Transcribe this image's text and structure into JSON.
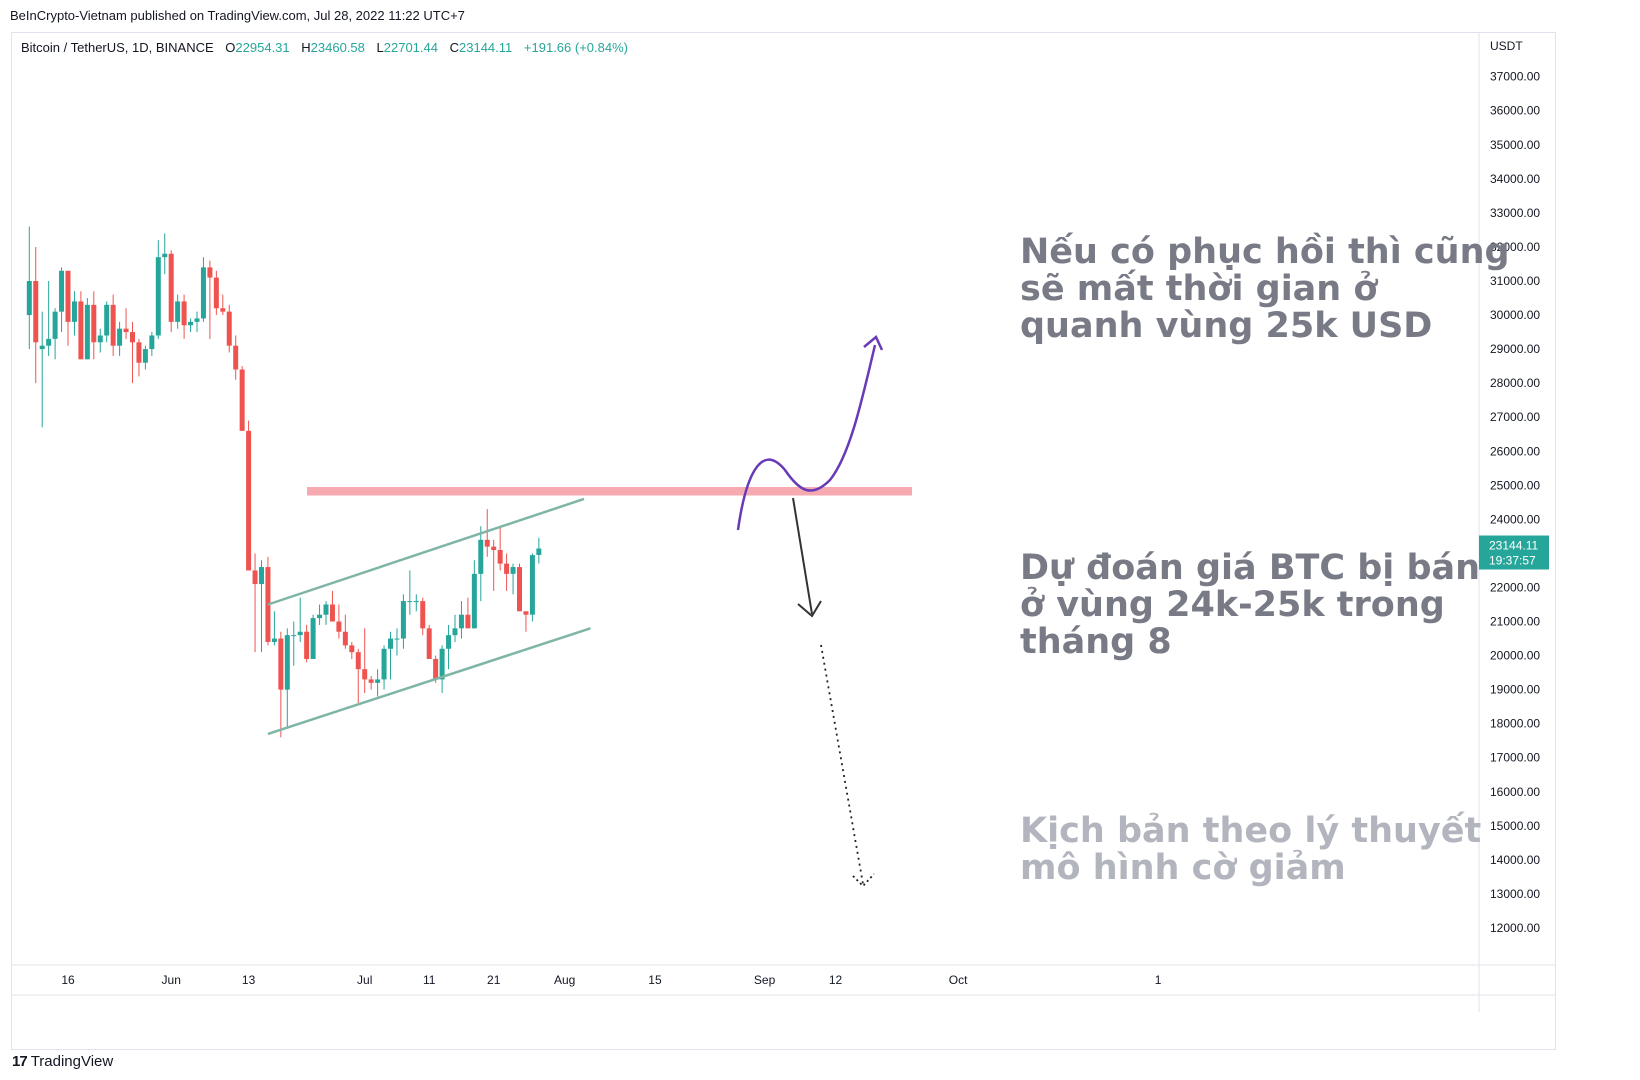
{
  "header": {
    "published": "BeInCrypto-Vietnam published on TradingView.com, Jul 28, 2022 11:22 UTC+7"
  },
  "symbol": {
    "name": "Bitcoin / TetherUS, 1D, BINANCE",
    "o_label": "O",
    "o": "22954.31",
    "h_label": "H",
    "h": "23460.58",
    "l_label": "L",
    "l": "22701.44",
    "c_label": "C",
    "c": "23144.11",
    "change": "+191.66 (+0.84%)"
  },
  "price_axis": {
    "currency": "USDT",
    "last_price": "23144.11",
    "countdown": "19:37:57"
  },
  "annotations": {
    "recovery": [
      "Nếu có phục hồi thì cũng",
      "sẽ mất thời gian ở",
      "quanh vùng 25k USD"
    ],
    "forecast": [
      "Dự đoán giá BTC bị bán",
      "ở vùng 24k-25k trong",
      "tháng 8"
    ],
    "scenario": [
      "Kịch bản theo lý thuyết",
      "mô hình cờ giảm"
    ]
  },
  "footer": {
    "logo_mark": "17",
    "logo_text": "TradingView"
  },
  "colors": {
    "up": "#26a69a",
    "down": "#ef5350",
    "resistance": "#f7a9b0",
    "channel": "#7fb5a6",
    "purple_path": "#673ab7",
    "arrow": "#333333"
  },
  "chart_data": {
    "type": "candlestick",
    "title": "Bitcoin / TetherUS, 1D, BINANCE",
    "ylabel": "USDT",
    "ylim": [
      11000,
      38000
    ],
    "y_ticks": [
      12000,
      13000,
      14000,
      15000,
      16000,
      17000,
      18000,
      19000,
      20000,
      21000,
      22000,
      23000,
      24000,
      25000,
      26000,
      27000,
      28000,
      29000,
      30000,
      31000,
      32000,
      33000,
      34000,
      35000,
      36000,
      37000
    ],
    "x_ticks": [
      {
        "label": "16",
        "date": "2022-05-16"
      },
      {
        "label": "Jun",
        "date": "2022-06-01"
      },
      {
        "label": "13",
        "date": "2022-06-13"
      },
      {
        "label": "Jul",
        "date": "2022-07-01"
      },
      {
        "label": "11",
        "date": "2022-07-11"
      },
      {
        "label": "21",
        "date": "2022-07-21"
      },
      {
        "label": "Aug",
        "date": "2022-08-01"
      },
      {
        "label": "15",
        "date": "2022-08-15"
      },
      {
        "label": "Sep",
        "date": "2022-09-01"
      },
      {
        "label": "12",
        "date": "2022-09-12"
      },
      {
        "label": "Oct",
        "date": "2022-10-01"
      },
      {
        "label": "1",
        "date": "2022-11-01"
      }
    ],
    "candles": [
      [
        "2022-05-10",
        30000,
        32600,
        29000,
        31000
      ],
      [
        "2022-05-11",
        31000,
        32000,
        28000,
        29200
      ],
      [
        "2022-05-12",
        29000,
        30100,
        26700,
        29100
      ],
      [
        "2022-05-13",
        29100,
        31000,
        28800,
        29300
      ],
      [
        "2022-05-14",
        29300,
        30200,
        28700,
        30100
      ],
      [
        "2022-05-15",
        30100,
        31400,
        29500,
        31300
      ],
      [
        "2022-05-16",
        31300,
        31300,
        29100,
        29800
      ],
      [
        "2022-05-17",
        29800,
        30700,
        29400,
        30400
      ],
      [
        "2022-05-18",
        30400,
        30700,
        28700,
        28700
      ],
      [
        "2022-05-19",
        28700,
        30500,
        28700,
        30300
      ],
      [
        "2022-05-20",
        30300,
        30700,
        28700,
        29200
      ],
      [
        "2022-05-21",
        29200,
        29600,
        28900,
        29400
      ],
      [
        "2022-05-22",
        29400,
        30400,
        29200,
        30300
      ],
      [
        "2022-05-23",
        30300,
        30600,
        28800,
        29100
      ],
      [
        "2022-05-24",
        29100,
        29800,
        28800,
        29600
      ],
      [
        "2022-05-25",
        29600,
        30200,
        29300,
        29500
      ],
      [
        "2022-05-26",
        29500,
        29800,
        28000,
        29200
      ],
      [
        "2022-05-27",
        29200,
        29300,
        28200,
        28600
      ],
      [
        "2022-05-28",
        28600,
        29100,
        28400,
        29000
      ],
      [
        "2022-05-29",
        29000,
        29500,
        28800,
        29400
      ],
      [
        "2022-05-30",
        29400,
        32200,
        29300,
        31700
      ],
      [
        "2022-05-31",
        31700,
        32400,
        31200,
        31800
      ],
      [
        "2022-06-01",
        31800,
        31900,
        29500,
        29800
      ],
      [
        "2022-06-02",
        29800,
        30600,
        29600,
        30400
      ],
      [
        "2022-06-03",
        30400,
        30600,
        29300,
        29700
      ],
      [
        "2022-06-04",
        29700,
        29900,
        29500,
        29800
      ],
      [
        "2022-06-05",
        29800,
        30100,
        29500,
        29900
      ],
      [
        "2022-06-06",
        29900,
        31700,
        29800,
        31400
      ],
      [
        "2022-06-07",
        31400,
        31600,
        29300,
        31100
      ],
      [
        "2022-06-08",
        31100,
        31300,
        30000,
        30200
      ],
      [
        "2022-06-09",
        30200,
        30600,
        30000,
        30100
      ],
      [
        "2022-06-10",
        30100,
        30300,
        28900,
        29100
      ],
      [
        "2022-06-11",
        29100,
        29400,
        28100,
        28400
      ],
      [
        "2022-06-12",
        28400,
        28500,
        26600,
        26600
      ],
      [
        "2022-06-13",
        26600,
        26900,
        22600,
        22500
      ],
      [
        "2022-06-14",
        22500,
        23000,
        20100,
        22100
      ],
      [
        "2022-06-15",
        22100,
        22800,
        20100,
        22600
      ],
      [
        "2022-06-16",
        22600,
        22900,
        20300,
        20400
      ],
      [
        "2022-06-17",
        20400,
        21300,
        20300,
        20500
      ],
      [
        "2022-06-18",
        20500,
        20700,
        17600,
        19000
      ],
      [
        "2022-06-19",
        19000,
        20800,
        17900,
        20600
      ],
      [
        "2022-06-20",
        20600,
        21000,
        19700,
        20600
      ],
      [
        "2022-06-21",
        20600,
        21700,
        20400,
        20700
      ],
      [
        "2022-06-22",
        20700,
        20900,
        19800,
        19900
      ],
      [
        "2022-06-23",
        19900,
        21200,
        19900,
        21100
      ],
      [
        "2022-06-24",
        21100,
        21500,
        20900,
        21200
      ],
      [
        "2022-06-25",
        21200,
        21600,
        20900,
        21500
      ],
      [
        "2022-06-26",
        21500,
        21900,
        21100,
        21000
      ],
      [
        "2022-06-27",
        21000,
        21500,
        20500,
        20700
      ],
      [
        "2022-06-28",
        20700,
        21200,
        20200,
        20300
      ],
      [
        "2022-06-29",
        20300,
        20400,
        19900,
        20100
      ],
      [
        "2022-06-30",
        20100,
        20200,
        18600,
        19600
      ],
      [
        "2022-07-01",
        19600,
        20800,
        18900,
        19300
      ],
      [
        "2022-07-02",
        19300,
        19400,
        19000,
        19200
      ],
      [
        "2022-07-03",
        19200,
        19600,
        18800,
        19300
      ],
      [
        "2022-07-04",
        19300,
        20300,
        19000,
        20200
      ],
      [
        "2022-07-05",
        20200,
        20700,
        19300,
        20500
      ],
      [
        "2022-07-06",
        20500,
        20800,
        20000,
        20500
      ],
      [
        "2022-07-07",
        20500,
        21800,
        20200,
        21600
      ],
      [
        "2022-07-08",
        21600,
        22500,
        21200,
        21600
      ],
      [
        "2022-07-09",
        21600,
        21800,
        21300,
        21600
      ],
      [
        "2022-07-10",
        21600,
        21700,
        20600,
        20800
      ],
      [
        "2022-07-11",
        20800,
        20900,
        19900,
        19900
      ],
      [
        "2022-07-12",
        19900,
        20000,
        19200,
        19300
      ],
      [
        "2022-07-13",
        19300,
        20300,
        18900,
        20200
      ],
      [
        "2022-07-14",
        20200,
        20900,
        19600,
        20600
      ],
      [
        "2022-07-15",
        20600,
        21200,
        20400,
        20800
      ],
      [
        "2022-07-16",
        20800,
        21600,
        20500,
        21200
      ],
      [
        "2022-07-17",
        21200,
        21700,
        20800,
        20800
      ],
      [
        "2022-07-18",
        20800,
        22800,
        20800,
        22400
      ],
      [
        "2022-07-19",
        22400,
        23800,
        21600,
        23400
      ],
      [
        "2022-07-20",
        23400,
        24300,
        22900,
        23200
      ],
      [
        "2022-07-21",
        23200,
        23400,
        21900,
        23100
      ],
      [
        "2022-07-22",
        23100,
        23800,
        22500,
        22700
      ],
      [
        "2022-07-23",
        22700,
        23000,
        21900,
        22400
      ],
      [
        "2022-07-24",
        22400,
        22700,
        21800,
        22600
      ],
      [
        "2022-07-25",
        22600,
        22700,
        21300,
        21300
      ],
      [
        "2022-07-26",
        21300,
        21300,
        20700,
        21200
      ],
      [
        "2022-07-27",
        21200,
        23000,
        21000,
        22950
      ],
      [
        "2022-07-28",
        22954.31,
        23460.58,
        22701.44,
        23144.11
      ]
    ],
    "resistance_zone": [
      24700,
      24950
    ],
    "channel": {
      "upper": [
        [
          "2022-06-16",
          21500
        ],
        [
          "2022-08-04",
          24600
        ]
      ],
      "lower": [
        [
          "2022-06-16",
          17700
        ],
        [
          "2022-08-05",
          20800
        ]
      ]
    }
  }
}
